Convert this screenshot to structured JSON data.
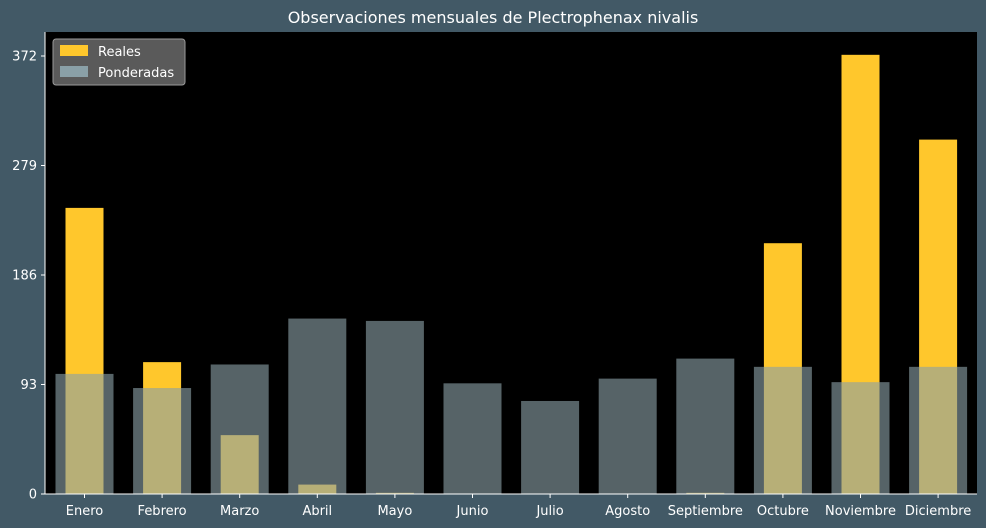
{
  "chart_data": {
    "type": "bar",
    "title": "Observaciones mensuales de Plectrophenax nivalis",
    "xlabel": "",
    "ylabel": "",
    "categories": [
      "Enero",
      "Febrero",
      "Marzo",
      "Abril",
      "Mayo",
      "Junio",
      "Julio",
      "Agosto",
      "Septiembre",
      "Octubre",
      "Noviembre",
      "Diciembre"
    ],
    "series": [
      {
        "name": "Reales",
        "color": "#ffc72c",
        "values": [
          243,
          112,
          50,
          8,
          1,
          0,
          0,
          0,
          1,
          213,
          373,
          301
        ]
      },
      {
        "name": "Ponderadas",
        "color": "#8aa0a7",
        "values": [
          102,
          90,
          110,
          149,
          147,
          94,
          79,
          98,
          115,
          108,
          95,
          108
        ]
      }
    ],
    "yticks": [
      0,
      93,
      186,
      279,
      372
    ],
    "ylim": [
      0,
      372
    ],
    "grid": false,
    "legend_position": "top-left",
    "colors": {
      "background": "#425966",
      "plot_background": "#000000",
      "text": "#ffffff"
    }
  }
}
